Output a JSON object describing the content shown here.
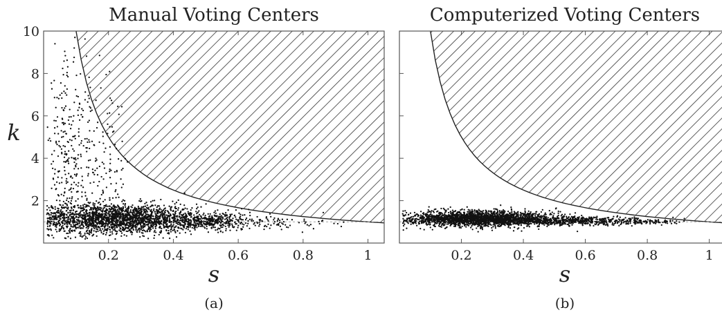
{
  "chart_data": [
    {
      "type": "scatter",
      "panel": "a",
      "title": "Manual Voting Centers",
      "caption": "(a)",
      "xlabel": "s",
      "ylabel": "k",
      "xlim": [
        0.0,
        1.05
      ],
      "ylim": [
        0.0,
        10.0
      ],
      "xticks": [
        0.2,
        0.4,
        0.6,
        0.8,
        1.0
      ],
      "xtick_labels": [
        "0.2",
        "0.4",
        "0.6",
        "0.8",
        "1"
      ],
      "yticks": [
        2,
        4,
        6,
        8,
        10
      ],
      "ytick_labels": [
        "2",
        "4",
        "6",
        "8",
        "10"
      ],
      "show_ytick_labels": true,
      "reference_k": 1,
      "forbidden_region": {
        "description": "hatched region above curve k = 1/s",
        "s_start": 0.1,
        "s_end": 1.05
      },
      "scatter_clusters": [
        {
          "center_s": 0.22,
          "center_k": 1.15,
          "spread_s": 0.13,
          "spread_k": 0.35,
          "count": 2200
        },
        {
          "center_s": 0.5,
          "center_k": 1.0,
          "spread_s": 0.1,
          "spread_k": 0.2,
          "count": 500
        },
        {
          "center_s": 0.07,
          "center_k": 4.0,
          "spread_s": 0.03,
          "spread_k": 2.5,
          "count": 220
        },
        {
          "center_s": 0.15,
          "center_k": 3.5,
          "spread_s": 0.06,
          "spread_k": 1.8,
          "count": 220
        },
        {
          "center_s": 0.75,
          "center_k": 0.9,
          "spread_s": 0.12,
          "spread_k": 0.15,
          "count": 40
        }
      ]
    },
    {
      "type": "scatter",
      "panel": "b",
      "title": "Computerized Voting Centers",
      "caption": "(b)",
      "xlabel": "s",
      "ylabel": "",
      "xlim": [
        0.0,
        1.05
      ],
      "ylim": [
        0.0,
        10.0
      ],
      "xticks": [
        0.2,
        0.4,
        0.6,
        0.8,
        1.0
      ],
      "xtick_labels": [
        "0.2",
        "0.4",
        "0.6",
        "0.8",
        "1"
      ],
      "yticks": [
        2,
        4,
        6,
        8,
        10
      ],
      "ytick_labels": [],
      "show_ytick_labels": false,
      "reference_k": 1,
      "forbidden_region": {
        "description": "hatched region above curve k = 1/s",
        "s_start": 0.1,
        "s_end": 1.05
      },
      "scatter_clusters": [
        {
          "center_s": 0.25,
          "center_k": 1.15,
          "spread_s": 0.12,
          "spread_k": 0.18,
          "count": 2200
        },
        {
          "center_s": 0.55,
          "center_k": 1.05,
          "spread_s": 0.12,
          "spread_k": 0.1,
          "count": 600
        },
        {
          "center_s": 0.8,
          "center_k": 1.0,
          "spread_s": 0.05,
          "spread_k": 0.05,
          "count": 80
        }
      ]
    }
  ]
}
